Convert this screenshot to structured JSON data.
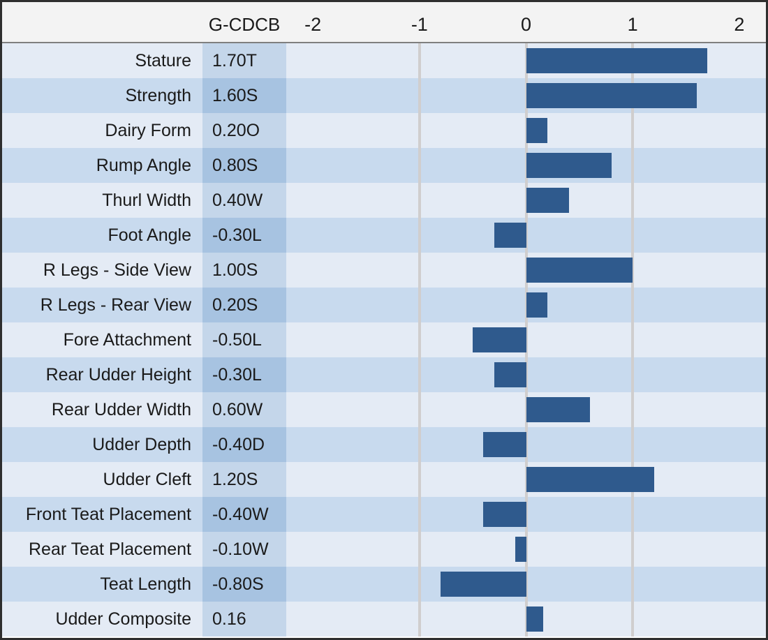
{
  "chart_data": {
    "type": "bar",
    "orientation": "horizontal",
    "column_header": "G-CDCB",
    "axis_tick_labels": [
      "-2",
      "-1",
      "0",
      "1",
      "2"
    ],
    "axis_ticks": [
      -2,
      -1,
      0,
      1,
      2
    ],
    "xlim": [
      -2.25,
      2.25
    ],
    "gridlines_at": [
      -1,
      0,
      1
    ],
    "legend": "none",
    "rows": [
      {
        "trait": "Stature",
        "display": "1.70T",
        "value": 1.7
      },
      {
        "trait": "Strength",
        "display": "1.60S",
        "value": 1.6
      },
      {
        "trait": "Dairy Form",
        "display": "0.20O",
        "value": 0.2
      },
      {
        "trait": "Rump Angle",
        "display": "0.80S",
        "value": 0.8
      },
      {
        "trait": "Thurl Width",
        "display": "0.40W",
        "value": 0.4
      },
      {
        "trait": "Foot Angle",
        "display": "-0.30L",
        "value": -0.3
      },
      {
        "trait": "R Legs - Side View",
        "display": "1.00S",
        "value": 1.0
      },
      {
        "trait": "R Legs - Rear View",
        "display": "0.20S",
        "value": 0.2
      },
      {
        "trait": "Fore Attachment",
        "display": "-0.50L",
        "value": -0.5
      },
      {
        "trait": "Rear Udder Height",
        "display": "-0.30L",
        "value": -0.3
      },
      {
        "trait": "Rear Udder Width",
        "display": "0.60W",
        "value": 0.6
      },
      {
        "trait": "Udder Depth",
        "display": "-0.40D",
        "value": -0.4
      },
      {
        "trait": "Udder Cleft",
        "display": "1.20S",
        "value": 1.2
      },
      {
        "trait": "Front Teat Placement",
        "display": "-0.40W",
        "value": -0.4
      },
      {
        "trait": "Rear Teat Placement",
        "display": "-0.10W",
        "value": -0.1
      },
      {
        "trait": "Teat Length",
        "display": "-0.80S",
        "value": -0.8
      },
      {
        "trait": "Udder Composite",
        "display": "0.16",
        "value": 0.16
      }
    ],
    "colors": {
      "bar": "#2F5A8D",
      "row_odd": "#C8DAEE",
      "row_even": "#E4EBF5",
      "value_col_odd": "#A7C3E1",
      "value_col_even": "#C4D6EA",
      "header_bg": "#F3F3F3",
      "gridline": "#D0CECE",
      "border": "#2E2E2E",
      "text": "#1A1A1A"
    }
  }
}
